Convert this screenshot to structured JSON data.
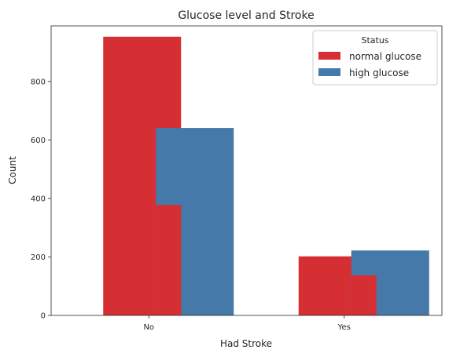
{
  "chart_data": {
    "type": "bar",
    "title": "Glucose level and Stroke",
    "xlabel": "Had Stroke",
    "ylabel": "Count",
    "categories": [
      "No",
      "Yes"
    ],
    "ylim": [
      0,
      990
    ],
    "yticks": [
      0,
      200,
      400,
      600,
      800
    ],
    "legend": {
      "title": "Status",
      "placement": "top-right"
    },
    "series": [
      {
        "name": "normal glucose",
        "color": "#d62f33",
        "values": [
          953,
          202
        ]
      },
      {
        "name": "high glucose",
        "color": "#4479a9",
        "values": [
          641,
          222
        ]
      }
    ],
    "overlap": {
      "normal_glucose_visible_below_high": [
        378,
        137
      ]
    }
  }
}
